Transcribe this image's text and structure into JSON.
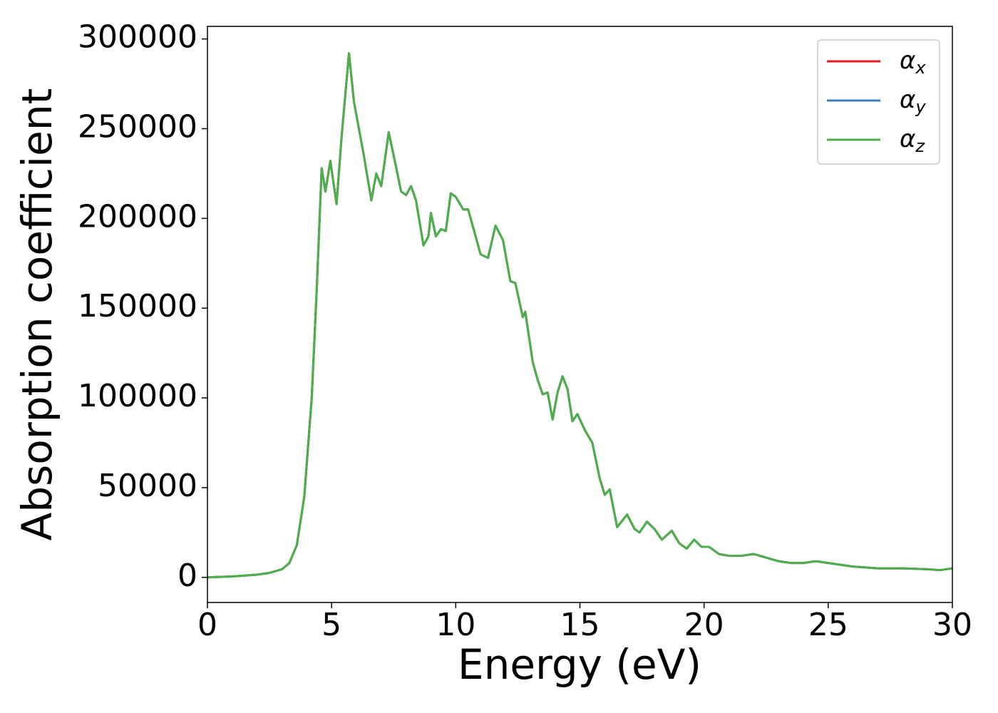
{
  "chart_data": {
    "type": "line",
    "xlabel": "Energy (eV)",
    "ylabel": "Absorption coefficient",
    "x": [
      0,
      1,
      2,
      2.5,
      3,
      3.3,
      3.6,
      3.9,
      4.2,
      4.4,
      4.6,
      4.75,
      4.95,
      5.2,
      5.4,
      5.7,
      5.9,
      6.1,
      6.3,
      6.6,
      6.8,
      7.0,
      7.3,
      7.5,
      7.8,
      8.0,
      8.2,
      8.4,
      8.7,
      8.9,
      9.0,
      9.2,
      9.4,
      9.6,
      9.8,
      10.0,
      10.3,
      10.5,
      10.8,
      11.0,
      11.3,
      11.6,
      11.9,
      12.2,
      12.4,
      12.7,
      12.8,
      13.1,
      13.3,
      13.5,
      13.7,
      13.9,
      14.1,
      14.3,
      14.5,
      14.7,
      14.9,
      15.2,
      15.5,
      15.8,
      16.0,
      16.2,
      16.5,
      16.9,
      17.2,
      17.4,
      17.7,
      18.0,
      18.3,
      18.7,
      19.0,
      19.3,
      19.6,
      19.9,
      20.2,
      20.6,
      21.0,
      21.5,
      22.0,
      22.5,
      23.0,
      23.5,
      24.0,
      24.5,
      25.0,
      25.5,
      26.0,
      27.0,
      28.0,
      29.0,
      29.5,
      30
    ],
    "series": [
      {
        "name": "αx",
        "color": "#e41a1c",
        "values": [
          0,
          500,
          1500,
          2500,
          4500,
          8000,
          18000,
          45000,
          100000,
          160000,
          228000,
          215000,
          232000,
          208000,
          245000,
          292000,
          265000,
          250000,
          235000,
          210000,
          225000,
          218000,
          248000,
          235000,
          215000,
          213000,
          218000,
          210000,
          185000,
          190000,
          203000,
          190000,
          194000,
          193000,
          214000,
          212000,
          205000,
          205000,
          190000,
          180000,
          178000,
          196000,
          188000,
          165000,
          164000,
          145000,
          148000,
          120000,
          110000,
          102000,
          103000,
          88000,
          103000,
          112000,
          105000,
          87000,
          91000,
          82000,
          75000,
          55000,
          46000,
          49000,
          28000,
          35000,
          27000,
          25000,
          31000,
          27000,
          21000,
          26000,
          19000,
          16000,
          21000,
          17000,
          17000,
          13000,
          12000,
          12000,
          13000,
          11000,
          9000,
          8000,
          8000,
          9000,
          8000,
          7000,
          6000,
          5000,
          5000,
          4500,
          4000,
          5000
        ]
      },
      {
        "name": "αy",
        "color": "#377eb8",
        "values": [
          0,
          500,
          1500,
          2500,
          4500,
          8000,
          18000,
          45000,
          100000,
          160000,
          228000,
          215000,
          232000,
          208000,
          245000,
          292000,
          265000,
          250000,
          235000,
          210000,
          225000,
          218000,
          248000,
          235000,
          215000,
          213000,
          218000,
          210000,
          185000,
          190000,
          203000,
          190000,
          194000,
          193000,
          214000,
          212000,
          205000,
          205000,
          190000,
          180000,
          178000,
          196000,
          188000,
          165000,
          164000,
          145000,
          148000,
          120000,
          110000,
          102000,
          103000,
          88000,
          103000,
          112000,
          105000,
          87000,
          91000,
          82000,
          75000,
          55000,
          46000,
          49000,
          28000,
          35000,
          27000,
          25000,
          31000,
          27000,
          21000,
          26000,
          19000,
          16000,
          21000,
          17000,
          17000,
          13000,
          12000,
          12000,
          13000,
          11000,
          9000,
          8000,
          8000,
          9000,
          8000,
          7000,
          6000,
          5000,
          5000,
          4500,
          4000,
          5000
        ]
      },
      {
        "name": "αz",
        "color": "#4daf4a",
        "values": [
          0,
          500,
          1500,
          2500,
          4500,
          8000,
          18000,
          45000,
          100000,
          160000,
          228000,
          215000,
          232000,
          208000,
          245000,
          292000,
          265000,
          250000,
          235000,
          210000,
          225000,
          218000,
          248000,
          235000,
          215000,
          213000,
          218000,
          210000,
          185000,
          190000,
          203000,
          190000,
          194000,
          193000,
          214000,
          212000,
          205000,
          205000,
          190000,
          180000,
          178000,
          196000,
          188000,
          165000,
          164000,
          145000,
          148000,
          120000,
          110000,
          102000,
          103000,
          88000,
          103000,
          112000,
          105000,
          87000,
          91000,
          82000,
          75000,
          55000,
          46000,
          49000,
          28000,
          35000,
          27000,
          25000,
          31000,
          27000,
          21000,
          26000,
          19000,
          16000,
          21000,
          17000,
          17000,
          13000,
          12000,
          12000,
          13000,
          11000,
          9000,
          8000,
          8000,
          9000,
          8000,
          7000,
          6000,
          5000,
          5000,
          4500,
          4000,
          5000
        ]
      }
    ],
    "xlim": [
      0,
      30
    ],
    "xticks": [
      0,
      5,
      10,
      15,
      20,
      25,
      30
    ],
    "ylim": [
      -14000,
      307000
    ],
    "yticks": [
      0,
      50000,
      100000,
      150000,
      200000,
      250000,
      300000
    ],
    "grid": false,
    "legend": "upper right"
  }
}
